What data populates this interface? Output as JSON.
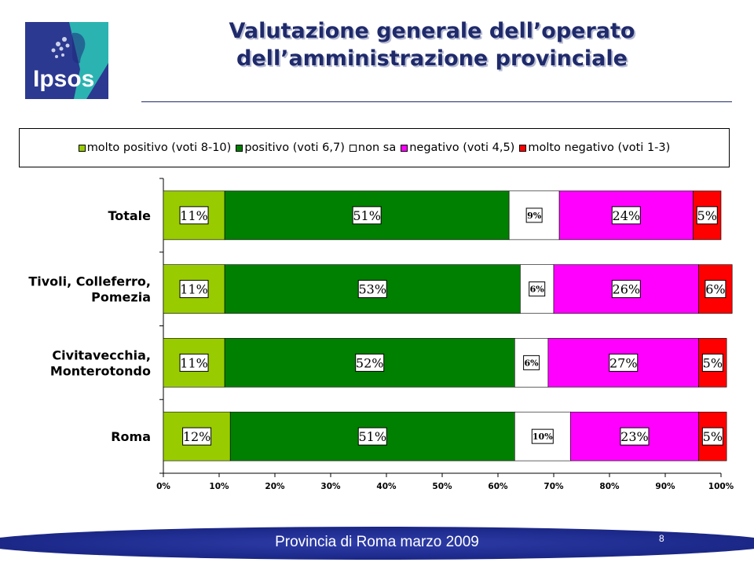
{
  "header": {
    "logo_text": "Ipsos",
    "title_line1": "Valutazione generale dell’operato",
    "title_line2": "dell’amministrazione provinciale"
  },
  "colors": {
    "title": "#1f2a6b",
    "logo_blue": "#2b3990",
    "logo_teal": "#2bb3b1"
  },
  "chart_data": {
    "type": "bar",
    "orientation": "horizontal",
    "stacked": true,
    "percent": true,
    "categories": [
      "Totale",
      "Tivoli, Colleferro, Pomezia",
      "Civitavecchia, Monterotondo",
      "Roma"
    ],
    "series": [
      {
        "name": "molto positivo (voti 8-10)",
        "color": "#99cc00",
        "values": [
          11,
          11,
          11,
          12
        ],
        "labels": [
          "11%",
          "11%",
          "11%",
          "12%"
        ]
      },
      {
        "name": "positivo (voti 6,7)",
        "color": "#008000",
        "values": [
          51,
          53,
          52,
          51
        ],
        "labels": [
          "51%",
          "53%",
          "52%",
          "51%"
        ]
      },
      {
        "name": "non sa",
        "color": "#ffffff",
        "values": [
          9,
          6,
          6,
          10
        ],
        "labels": [
          "9%",
          "6%",
          "6%",
          "10%"
        ]
      },
      {
        "name": "negativo (voti 4,5)",
        "color": "#ff00ff",
        "values": [
          24,
          26,
          27,
          23
        ],
        "labels": [
          "24%",
          "26%",
          "27%",
          "23%"
        ]
      },
      {
        "name": "molto negativo (voti 1-3)",
        "color": "#ff0000",
        "values": [
          5,
          6,
          5,
          5
        ],
        "labels": [
          "5%",
          "6%",
          "5%",
          "5%"
        ]
      }
    ],
    "xlim": [
      0,
      100
    ],
    "x_ticks": [
      "0%",
      "10%",
      "20%",
      "30%",
      "40%",
      "50%",
      "60%",
      "70%",
      "80%",
      "90%",
      "100%"
    ],
    "legend_position": "top",
    "grid": false
  },
  "footer": {
    "text": "Provincia di Roma marzo 2009",
    "page_number": "8"
  }
}
